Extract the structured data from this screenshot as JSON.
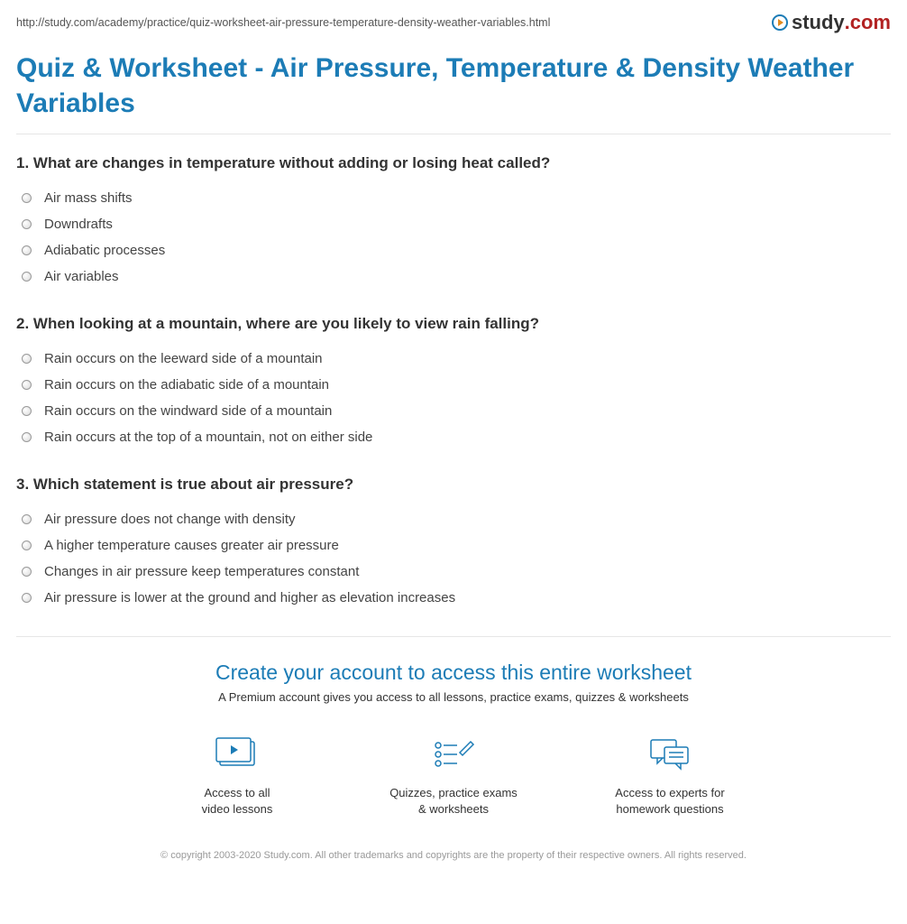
{
  "url": "http://study.com/academy/practice/quiz-worksheet-air-pressure-temperature-density-weather-variables.html",
  "logo": {
    "text": "study",
    "suffix": ".com"
  },
  "title": "Quiz & Worksheet - Air Pressure, Temperature & Density Weather Variables",
  "questions": [
    {
      "number": "1.",
      "text": "What are changes in temperature without adding or losing heat called?",
      "options": [
        "Air mass shifts",
        "Downdrafts",
        "Adiabatic processes",
        "Air variables"
      ]
    },
    {
      "number": "2.",
      "text": "When looking at a mountain, where are you likely to view rain falling?",
      "options": [
        "Rain occurs on the leeward side of a mountain",
        "Rain occurs on the adiabatic side of a mountain",
        "Rain occurs on the windward side of a mountain",
        "Rain occurs at the top of a mountain, not on either side"
      ]
    },
    {
      "number": "3.",
      "text": "Which statement is true about air pressure?",
      "options": [
        "Air pressure does not change with density",
        "A higher temperature causes greater air pressure",
        "Changes in air pressure keep temperatures constant",
        "Air pressure is lower at the ground and higher as elevation increases"
      ]
    }
  ],
  "cta": {
    "title": "Create your account to access this entire worksheet",
    "subtitle": "A Premium account gives you access to all lessons, practice exams, quizzes & worksheets",
    "benefits": [
      {
        "line1": "Access to all",
        "line2": "video lessons"
      },
      {
        "line1": "Quizzes, practice exams",
        "line2": "& worksheets"
      },
      {
        "line1": "Access to experts for",
        "line2": "homework questions"
      }
    ]
  },
  "copyright": "© copyright 2003-2020 Study.com. All other trademarks and copyrights are the property of their respective owners. All rights reserved."
}
